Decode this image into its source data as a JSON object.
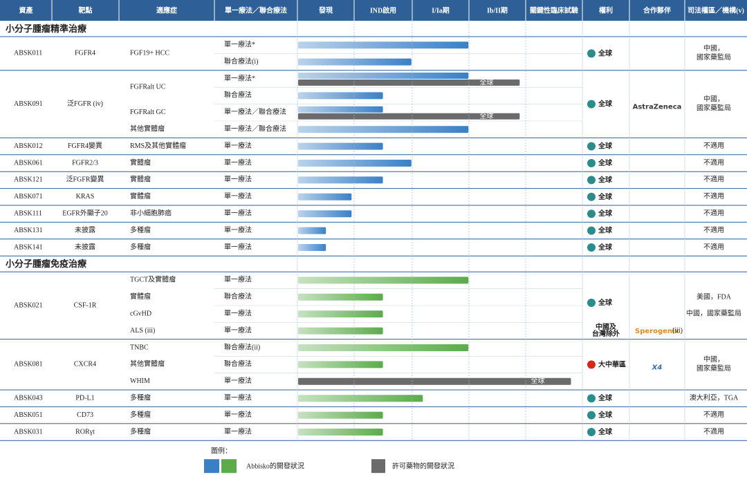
{
  "header": [
    "資產",
    "靶點",
    "適應症",
    "單一療法／聯合療法",
    "發現",
    "IND啟用",
    "I/Ia期",
    "Ib/II期",
    "關鍵性臨床試驗",
    "權利",
    "合作夥伴",
    "司法權區／機構(v)"
  ],
  "licensed_color": "#6b6b6b",
  "sections": [
    {
      "title": "小分子腫瘤精準治療",
      "color": "#3a80c6",
      "assets": [
        {
          "asset": "ABSK011",
          "target": "FGFR4",
          "rights": "全球",
          "rights_color": "#2a8c8c",
          "jurisdiction": [
            "中國，",
            "國家藥監局"
          ],
          "indications": [
            {
              "name": "FGF19+ HCC",
              "therapies": [
                {
                  "name": "單一療法*",
                  "progress": 3.0
                },
                {
                  "name": "聯合療法(i)",
                  "progress": 2.0
                }
              ]
            }
          ]
        },
        {
          "asset": "ABSK091",
          "target": "泛FGFR (iv)",
          "rights": "全球",
          "rights_color": "#2a8c8c",
          "partner": {
            "name": "AstraZeneca",
            "color": "#3a3a3a"
          },
          "jurisdiction": [
            "中國，",
            "國家藥監局"
          ],
          "indications": [
            {
              "name": "FGFRalt UC",
              "therapies": [
                {
                  "name": "單一療法*",
                  "progress": 3.0,
                  "licensed_progress": 3.9,
                  "licensed_label": "全球"
                },
                {
                  "name": "聯合療法",
                  "progress": 1.5
                }
              ]
            },
            {
              "name": "FGFRalt GC",
              "therapies": [
                {
                  "name": "單一療法／聯合療法",
                  "progress": 1.5,
                  "licensed_progress": 3.9,
                  "licensed_label": "全球"
                }
              ]
            },
            {
              "name": "其他實體瘤",
              "therapies": [
                {
                  "name": "單一療法／聯合療法",
                  "progress": 3.0
                }
              ]
            }
          ]
        },
        {
          "asset": "ABSK012",
          "target": "FGFR4變異",
          "rights": "全球",
          "rights_color": "#2a8c8c",
          "jurisdiction": [
            "不適用"
          ],
          "indications": [
            {
              "name": "RMS及其他實體瘤",
              "therapies": [
                {
                  "name": "單一療法",
                  "progress": 1.5
                }
              ]
            }
          ]
        },
        {
          "asset": "ABSK061",
          "target": "FGFR2/3",
          "rights": "全球",
          "rights_color": "#2a8c8c",
          "jurisdiction": [
            "不適用"
          ],
          "indications": [
            {
              "name": "實體瘤",
              "therapies": [
                {
                  "name": "單一療法",
                  "progress": 2.0
                }
              ]
            }
          ]
        },
        {
          "asset": "ABSK121",
          "target": "泛FGFR變異",
          "rights": "全球",
          "rights_color": "#2a8c8c",
          "jurisdiction": [
            "不適用"
          ],
          "indications": [
            {
              "name": "實體瘤",
              "therapies": [
                {
                  "name": "單一療法",
                  "progress": 1.5
                }
              ]
            }
          ]
        },
        {
          "asset": "ABSK071",
          "target": "KRAS",
          "rights": "全球",
          "rights_color": "#2a8c8c",
          "jurisdiction": [
            "不適用"
          ],
          "indications": [
            {
              "name": "實體瘤",
              "therapies": [
                {
                  "name": "單一療法",
                  "progress": 0.95
                }
              ]
            }
          ]
        },
        {
          "asset": "ABSK111",
          "target": "EGFR外顯子20",
          "rights": "全球",
          "rights_color": "#2a8c8c",
          "jurisdiction": [
            "不適用"
          ],
          "indications": [
            {
              "name": "非小細胞肺癌",
              "therapies": [
                {
                  "name": "單一療法",
                  "progress": 0.95
                }
              ]
            }
          ]
        },
        {
          "asset": "ABSK131",
          "target": "未披露",
          "rights": "全球",
          "rights_color": "#2a8c8c",
          "jurisdiction": [
            "不適用"
          ],
          "indications": [
            {
              "name": "多種瘤",
              "therapies": [
                {
                  "name": "單一療法",
                  "progress": 0.5
                }
              ]
            }
          ]
        },
        {
          "asset": "ABSK141",
          "target": "未披露",
          "rights": "全球",
          "rights_color": "#2a8c8c",
          "jurisdiction": [
            "不適用"
          ],
          "indications": [
            {
              "name": "多種瘤",
              "therapies": [
                {
                  "name": "單一療法",
                  "progress": 0.5
                }
              ]
            }
          ]
        }
      ]
    },
    {
      "title": "小分子腫瘤免疫治療",
      "color": "#5bab4b",
      "assets": [
        {
          "asset": "ABSK021",
          "target": "CSF-1R",
          "rights": "全球",
          "rights_color": "#2a8c8c",
          "rights_note": [
            "中國及",
            "台灣除外"
          ],
          "partner": {
            "name": "Sperogenix",
            "note": "(iii)",
            "color": "#e08a1e"
          },
          "jurisdiction": [
            "美國，FDA",
            "中國，國家藥監局"
          ],
          "indications": [
            {
              "name": "TGCT及實體瘤",
              "therapies": [
                {
                  "name": "單一療法",
                  "progress": 3.0
                }
              ]
            },
            {
              "name": "實體瘤",
              "therapies": [
                {
                  "name": "聯合療法",
                  "progress": 1.5
                }
              ]
            },
            {
              "name": "cGvHD",
              "therapies": [
                {
                  "name": "單一療法",
                  "progress": 1.5
                }
              ]
            },
            {
              "name": "ALS (iii)",
              "therapies": [
                {
                  "name": "單一療法",
                  "progress": 1.5
                }
              ]
            }
          ]
        },
        {
          "asset": "ABSK081",
          "target": "CXCR4",
          "rights": "大中華區",
          "rights_color": "#d9261c",
          "partner": {
            "name": "X4",
            "color": "#2f6db5"
          },
          "jurisdiction": [
            "中國，",
            "國家藥監局"
          ],
          "indications": [
            {
              "name": "TNBC",
              "therapies": [
                {
                  "name": "聯合療法(ii)",
                  "progress": 3.0
                }
              ]
            },
            {
              "name": "其他實體瘤",
              "therapies": [
                {
                  "name": "聯合療法",
                  "progress": 1.5
                }
              ]
            },
            {
              "name": "WHIM",
              "therapies": [
                {
                  "name": "單一療法",
                  "licensed_progress": 4.8,
                  "licensed_label": "全球"
                }
              ]
            }
          ]
        },
        {
          "asset": "ABSK043",
          "target": "PD-L1",
          "rights": "全球",
          "rights_color": "#2a8c8c",
          "jurisdiction": [
            "澳大利亞，TGA"
          ],
          "indications": [
            {
              "name": "多種瘤",
              "therapies": [
                {
                  "name": "單一療法",
                  "progress": 2.2
                }
              ]
            }
          ]
        },
        {
          "asset": "ABSK051",
          "target": "CD73",
          "rights": "全球",
          "rights_color": "#2a8c8c",
          "jurisdiction": [
            "不適用"
          ],
          "indications": [
            {
              "name": "多種瘤",
              "therapies": [
                {
                  "name": "單一療法",
                  "progress": 1.5
                }
              ]
            }
          ]
        },
        {
          "asset": "ABSK031",
          "target": "RORγt",
          "rights": "全球",
          "rights_color": "#2a8c8c",
          "jurisdiction": [
            "不適用"
          ],
          "indications": [
            {
              "name": "多種瘤",
              "therapies": [
                {
                  "name": "單一療法",
                  "progress": 1.5
                }
              ]
            }
          ]
        }
      ]
    }
  ],
  "legend": {
    "title": "圖例：",
    "abbisko": "Abbisko的開發狀況",
    "licensed": "許可藥物的開發狀況"
  }
}
